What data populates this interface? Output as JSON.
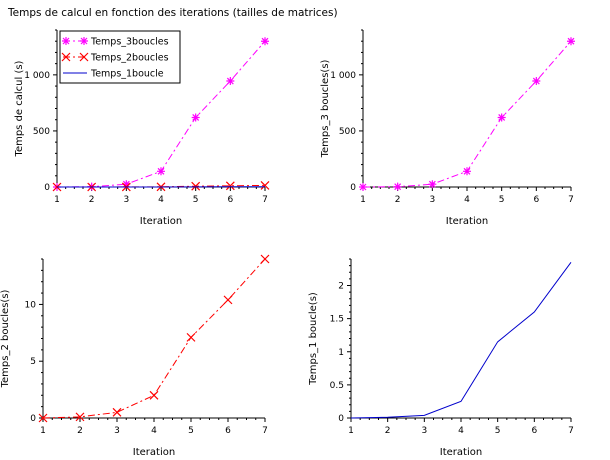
{
  "figure_title": "Temps de calcul en fonction des iterations (tailles de matrices)",
  "colors": {
    "trois": "#ff00ff",
    "deux": "#ff0000",
    "un": "#0000cc",
    "axis": "#000000"
  },
  "chart_data": [
    {
      "type": "line",
      "title": "",
      "xlabel": "Iteration",
      "ylabel": "Temps de calcul (s)",
      "xlim": [
        1,
        7
      ],
      "ylim": [
        0,
        1400
      ],
      "xticks": [
        1,
        2,
        3,
        4,
        5,
        6,
        7
      ],
      "yticks": [
        0,
        500,
        1000
      ],
      "ytick_labels": [
        "0",
        "500",
        "1 000"
      ],
      "legend": {
        "position": "top-left",
        "entries": [
          "Temps_3boucles",
          "Temps_2boucles",
          "Temps_1boucle"
        ]
      },
      "x": [
        1,
        2,
        3,
        4,
        5,
        6,
        7
      ],
      "series": [
        {
          "name": "Temps_3boucles",
          "values": [
            0,
            3,
            25,
            140,
            620,
            945,
            1300
          ],
          "color": "#ff00ff",
          "dash": "dashdot",
          "marker": "star"
        },
        {
          "name": "Temps_2boucles",
          "values": [
            0,
            0.1,
            0.5,
            2,
            7.1,
            10.4,
            14
          ],
          "color": "#ff0000",
          "dash": "dashdot",
          "marker": "x"
        },
        {
          "name": "Temps_1boucle",
          "values": [
            0,
            0.01,
            0.04,
            0.25,
            1.15,
            1.6,
            2.35
          ],
          "color": "#0000cc",
          "dash": "solid",
          "marker": "none"
        }
      ]
    },
    {
      "type": "line",
      "title": "",
      "xlabel": "Iteration",
      "ylabel": "Temps_3 boucles(s)",
      "xlim": [
        1,
        7
      ],
      "ylim": [
        0,
        1400
      ],
      "xticks": [
        1,
        2,
        3,
        4,
        5,
        6,
        7
      ],
      "yticks": [
        0,
        500,
        1000
      ],
      "ytick_labels": [
        "0",
        "500",
        "1 000"
      ],
      "x": [
        1,
        2,
        3,
        4,
        5,
        6,
        7
      ],
      "series": [
        {
          "name": "Temps_3boucles",
          "values": [
            0,
            3,
            25,
            140,
            620,
            945,
            1300
          ],
          "color": "#ff00ff",
          "dash": "dashdot",
          "marker": "star"
        }
      ]
    },
    {
      "type": "line",
      "title": "",
      "xlabel": "Iteration",
      "ylabel": "Temps_2 boucles(s)",
      "xlim": [
        1,
        7
      ],
      "ylim": [
        0,
        14
      ],
      "xticks": [
        1,
        2,
        3,
        4,
        5,
        6,
        7
      ],
      "yticks": [
        0,
        5,
        10
      ],
      "ytick_labels": [
        "0",
        "5",
        "10"
      ],
      "x": [
        1,
        2,
        3,
        4,
        5,
        6,
        7
      ],
      "series": [
        {
          "name": "Temps_2boucles",
          "values": [
            0,
            0.1,
            0.5,
            2,
            7.1,
            10.4,
            14
          ],
          "color": "#ff0000",
          "dash": "dashdot",
          "marker": "x"
        }
      ]
    },
    {
      "type": "line",
      "title": "",
      "xlabel": "Iteration",
      "ylabel": "Temps_1 boucle(s)",
      "xlim": [
        1,
        7
      ],
      "ylim": [
        0,
        2.4
      ],
      "xticks": [
        1,
        2,
        3,
        4,
        5,
        6,
        7
      ],
      "yticks": [
        0,
        0.5,
        1,
        1.5,
        2
      ],
      "ytick_labels": [
        "0",
        "0.5",
        "1",
        "1.5",
        "2"
      ],
      "x": [
        1,
        2,
        3,
        4,
        5,
        6,
        7
      ],
      "series": [
        {
          "name": "Temps_1boucle",
          "values": [
            0,
            0.01,
            0.04,
            0.25,
            1.15,
            1.6,
            2.35
          ],
          "color": "#0000cc",
          "dash": "solid",
          "marker": "none"
        }
      ]
    }
  ]
}
